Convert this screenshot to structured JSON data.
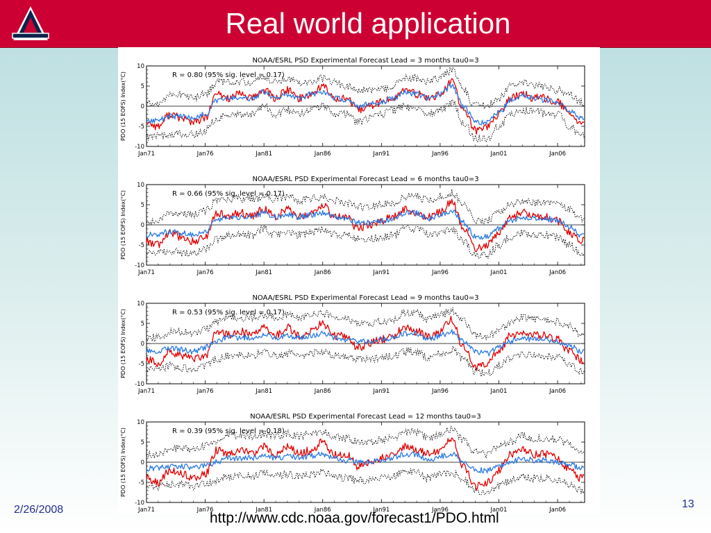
{
  "slide": {
    "title": "Real world application",
    "date": "2/26/2008",
    "url": "http://www.cdc.noaa.gov/forecast1/PDO.html",
    "page_number": "13"
  },
  "colors": {
    "header": "#cc0033",
    "observed": "#e00000",
    "forecast": "#2a7ae2",
    "confidence": "#000000",
    "footer_text": "#1f2f8f"
  },
  "icons": {
    "logo": "university-a-logo"
  },
  "chart_data": [
    {
      "type": "line",
      "title": "NOAA/ESRL PSD Experimental Forecast    Lead = 3 months tau0=3",
      "annotation": "R = 0.80 (95% sig. level = 0.17)",
      "ylabel": "PDO (15 EOFS)  Index(°C)",
      "xlabel": "",
      "x_ticks": [
        "Jan71",
        "Jan76",
        "Jan81",
        "Jan86",
        "Jan91",
        "Jan96",
        "Jan01",
        "Jan06"
      ],
      "y_ticks": [
        -10,
        -5,
        0,
        5,
        10
      ],
      "xlim": [
        1971,
        2008.3
      ],
      "ylim": [
        -10,
        10
      ],
      "grid": false,
      "noise_seed": 11,
      "x": [
        1971,
        1972,
        1973,
        1974,
        1975,
        1976,
        1977,
        1978,
        1979,
        1980,
        1981,
        1982,
        1983,
        1984,
        1985,
        1986,
        1987,
        1988,
        1989,
        1990,
        1991,
        1992,
        1993,
        1994,
        1995,
        1996,
        1997,
        1998,
        1999,
        2000,
        2001,
        2002,
        2003,
        2004,
        2005,
        2006,
        2007,
        2008
      ],
      "series": [
        {
          "values": [
            -4,
            -5,
            -2,
            -3,
            -4,
            -3,
            3,
            2,
            3,
            2,
            4,
            2,
            4,
            2,
            3,
            5,
            2,
            2,
            -1,
            0,
            1,
            2,
            4,
            3,
            2,
            3,
            6,
            -1,
            -6,
            -5,
            -2,
            2,
            3,
            2,
            2,
            1,
            -2,
            -4
          ]
        },
        {
          "values": [
            -3.5,
            -3.5,
            -2.5,
            -2.5,
            -3,
            -2,
            1.5,
            2,
            2,
            2,
            3.5,
            2,
            3,
            2,
            3,
            3.5,
            2,
            1.5,
            0,
            0.5,
            1,
            2,
            3.5,
            3,
            2,
            3,
            5,
            0,
            -4,
            -4,
            -1.5,
            1.5,
            2.5,
            2,
            1.5,
            1,
            -1,
            -3
          ]
        },
        {
          "values": [
            0.5,
            0.5,
            3,
            3,
            2,
            3,
            6,
            6,
            6,
            6,
            7,
            6,
            7,
            6,
            6,
            7,
            6,
            5,
            4,
            4,
            4,
            5,
            7,
            7,
            6,
            7,
            9,
            4,
            0,
            0,
            2,
            5,
            6,
            5,
            5,
            4,
            3,
            1
          ]
        },
        {
          "values": [
            -7.5,
            -7.5,
            -7,
            -7,
            -7,
            -6,
            -3,
            -2,
            -2,
            -2,
            0,
            -2,
            -1,
            -2,
            -1,
            0,
            -2,
            -2,
            -4,
            -3,
            -2,
            -1,
            0,
            -1,
            -2,
            -1,
            1,
            -4,
            -8,
            -8,
            -5,
            -2,
            -1,
            -1,
            -2,
            -2,
            -5,
            -7
          ]
        }
      ]
    },
    {
      "type": "line",
      "title": "NOAA/ESRL PSD Experimental Forecast    Lead = 6 months tau0=3",
      "annotation": "R = 0.66 (95% sig. level = 0.17)",
      "ylabel": "PDO (15 EOFS)  Index(°C)",
      "xlabel": "",
      "x_ticks": [
        "Jan71",
        "Jan76",
        "Jan81",
        "Jan86",
        "Jan91",
        "Jan96",
        "Jan01",
        "Jan06"
      ],
      "y_ticks": [
        -10,
        -5,
        0,
        5,
        10
      ],
      "xlim": [
        1971,
        2008.3
      ],
      "ylim": [
        -10,
        10
      ],
      "grid": false,
      "noise_seed": 23,
      "x": [
        1971,
        1972,
        1973,
        1974,
        1975,
        1976,
        1977,
        1978,
        1979,
        1980,
        1981,
        1982,
        1983,
        1984,
        1985,
        1986,
        1987,
        1988,
        1989,
        1990,
        1991,
        1992,
        1993,
        1994,
        1995,
        1996,
        1997,
        1998,
        1999,
        2000,
        2001,
        2002,
        2003,
        2004,
        2005,
        2006,
        2007,
        2008
      ],
      "series": [
        {
          "values": [
            -4,
            -5,
            -2,
            -3,
            -4,
            -3,
            3,
            2,
            3,
            2,
            4,
            2,
            4,
            2,
            3,
            5,
            2,
            2,
            -1,
            0,
            1,
            2,
            4,
            3,
            2,
            3,
            6,
            -1,
            -6,
            -5,
            -2,
            2,
            3,
            2,
            2,
            1,
            -2,
            -4
          ]
        },
        {
          "values": [
            -2.5,
            -2.5,
            -1.5,
            -2,
            -2.5,
            -1.5,
            1,
            2,
            2,
            2,
            3,
            2,
            2.5,
            2,
            2.5,
            3,
            2,
            1.5,
            0.5,
            0.5,
            1,
            1.5,
            3,
            3,
            1.5,
            2.5,
            3.5,
            0.5,
            -3,
            -3,
            -1,
            1,
            2,
            1.5,
            1.5,
            1,
            -0.5,
            -2.5
          ]
        },
        {
          "values": [
            1,
            1,
            3,
            3,
            2.5,
            3.5,
            6,
            6.5,
            6.5,
            6.5,
            7,
            6.5,
            7,
            6,
            6.5,
            7,
            6,
            5.5,
            4.5,
            4.5,
            5,
            5.5,
            7,
            7,
            6,
            7,
            8,
            5,
            1,
            1,
            3,
            5,
            6,
            5.5,
            5.5,
            5,
            4,
            1.5
          ]
        },
        {
          "values": [
            -7,
            -7,
            -6.5,
            -7,
            -7,
            -6,
            -3.5,
            -2.5,
            -2.5,
            -2.5,
            -1,
            -2.5,
            -2,
            -2.5,
            -2,
            -1,
            -2.5,
            -2.5,
            -3.5,
            -3.5,
            -3,
            -2.5,
            -1,
            -1,
            -2.5,
            -2,
            -1,
            -4,
            -7.5,
            -7.5,
            -5,
            -3,
            -2,
            -2.5,
            -2.5,
            -3,
            -5,
            -7
          ]
        }
      ]
    },
    {
      "type": "line",
      "title": "NOAA/ESRL PSD Experimental Forecast    Lead = 9 months tau0=3",
      "annotation": "R = 0.53 (95% sig. level = 0.17)",
      "ylabel": "PDO (15 EOFS)  Index(°C)",
      "xlabel": "",
      "x_ticks": [
        "Jan71",
        "Jan76",
        "Jan81",
        "Jan86",
        "Jan91",
        "Jan96",
        "Jan01",
        "Jan06"
      ],
      "y_ticks": [
        -10,
        -5,
        0,
        5,
        10
      ],
      "xlim": [
        1971,
        2008.3
      ],
      "ylim": [
        -10,
        10
      ],
      "grid": false,
      "noise_seed": 37,
      "x": [
        1971,
        1972,
        1973,
        1974,
        1975,
        1976,
        1977,
        1978,
        1979,
        1980,
        1981,
        1982,
        1983,
        1984,
        1985,
        1986,
        1987,
        1988,
        1989,
        1990,
        1991,
        1992,
        1993,
        1994,
        1995,
        1996,
        1997,
        1998,
        1999,
        2000,
        2001,
        2002,
        2003,
        2004,
        2005,
        2006,
        2007,
        2008
      ],
      "series": [
        {
          "values": [
            -4,
            -5,
            -2,
            -3,
            -4,
            -3,
            3,
            2,
            3,
            2,
            4,
            2,
            4,
            2,
            3,
            5,
            2,
            2,
            -1,
            0,
            1,
            2,
            4,
            3,
            2,
            3,
            6,
            -1,
            -6,
            -5,
            -2,
            2,
            3,
            2,
            2,
            1,
            -2,
            -4
          ]
        },
        {
          "values": [
            -2,
            -2,
            -1,
            -1.5,
            -2,
            -1,
            0.5,
            1.5,
            1.5,
            1.5,
            2,
            1.5,
            2,
            1.5,
            2,
            2.5,
            1.5,
            1,
            0.5,
            0.5,
            1,
            1.5,
            2.5,
            2.5,
            1,
            2,
            3,
            0.5,
            -2,
            -2.5,
            -1,
            0.5,
            1.5,
            1,
            1,
            0.5,
            -0.5,
            -2
          ]
        },
        {
          "values": [
            1.5,
            1.5,
            3,
            3,
            2.5,
            3.5,
            5.5,
            6.5,
            6.5,
            6.5,
            7,
            6.5,
            7,
            6.5,
            7,
            7.5,
            6.5,
            6,
            5,
            5,
            5.5,
            6,
            7.5,
            7.5,
            6,
            7,
            8,
            5.5,
            2,
            1.5,
            3.5,
            5,
            6.5,
            6,
            6,
            5.5,
            4.5,
            2
          ]
        },
        {
          "values": [
            -6.5,
            -6.5,
            -5.5,
            -6,
            -6.5,
            -5.5,
            -4,
            -3,
            -3,
            -3,
            -2,
            -3,
            -2.5,
            -3,
            -2.5,
            -2,
            -3,
            -3.5,
            -4,
            -4,
            -3.5,
            -3,
            -2,
            -2,
            -3.5,
            -2.5,
            -1.5,
            -4,
            -7,
            -7.5,
            -5.5,
            -3.5,
            -2.5,
            -3,
            -3,
            -3.5,
            -5,
            -7
          ]
        }
      ]
    },
    {
      "type": "line",
      "title": "NOAA/ESRL PSD Experimental Forecast    Lead = 12 months tau0=3",
      "annotation": "R = 0.39 (95% sig. level = 0.18)",
      "ylabel": "PDO (15 EOFS)  Index(°C)",
      "xlabel": "",
      "x_ticks": [
        "Jan71",
        "Jan76",
        "Jan81",
        "Jan86",
        "Jan91",
        "Jan96",
        "Jan01",
        "Jan06"
      ],
      "y_ticks": [
        -10,
        -5,
        0,
        5,
        10
      ],
      "xlim": [
        1971,
        2008.3
      ],
      "ylim": [
        -10,
        10
      ],
      "grid": false,
      "noise_seed": 53,
      "x": [
        1971,
        1972,
        1973,
        1974,
        1975,
        1976,
        1977,
        1978,
        1979,
        1980,
        1981,
        1982,
        1983,
        1984,
        1985,
        1986,
        1987,
        1988,
        1989,
        1990,
        1991,
        1992,
        1993,
        1994,
        1995,
        1996,
        1997,
        1998,
        1999,
        2000,
        2001,
        2002,
        2003,
        2004,
        2005,
        2006,
        2007,
        2008
      ],
      "series": [
        {
          "values": [
            -4,
            -5,
            -2,
            -3,
            -4,
            -3,
            3,
            2,
            3,
            2,
            4,
            2,
            4,
            2,
            3,
            5,
            2,
            2,
            -1,
            0,
            1,
            2,
            4,
            3,
            2,
            3,
            6,
            -1,
            -6,
            -5,
            -2,
            2,
            3,
            2,
            2,
            1,
            -2,
            -4
          ]
        },
        {
          "values": [
            -1.5,
            -1.5,
            -1,
            -1,
            -1.5,
            -1,
            0,
            1,
            1,
            1,
            1.5,
            1,
            1.5,
            1,
            1.5,
            2,
            1,
            0.5,
            0,
            0,
            0.5,
            1,
            2,
            2,
            0.5,
            1.5,
            2,
            0,
            -2,
            -2,
            -1,
            0,
            1,
            0.5,
            0.5,
            0,
            -0.5,
            -1.5
          ]
        },
        {
          "values": [
            2,
            2,
            3.5,
            3.5,
            3,
            4,
            5.5,
            6.5,
            6.5,
            6.5,
            7,
            6.5,
            7,
            6.5,
            7,
            7.5,
            6.5,
            6,
            5,
            5,
            5.5,
            6,
            7.5,
            7.5,
            6,
            7,
            8,
            5.5,
            2.5,
            2,
            4,
            5,
            6.5,
            6,
            6,
            5.5,
            4.5,
            2.5
          ]
        },
        {
          "values": [
            -6,
            -6,
            -5.5,
            -5.5,
            -6,
            -5.5,
            -4.5,
            -3.5,
            -3.5,
            -3.5,
            -2.5,
            -3.5,
            -3,
            -3.5,
            -3,
            -2.5,
            -3.5,
            -4,
            -4.5,
            -4.5,
            -4,
            -3.5,
            -2.5,
            -2.5,
            -4,
            -3,
            -2.5,
            -4.5,
            -7,
            -7.5,
            -6,
            -4.5,
            -3.5,
            -4,
            -4,
            -4.5,
            -5.5,
            -7
          ]
        }
      ]
    }
  ]
}
